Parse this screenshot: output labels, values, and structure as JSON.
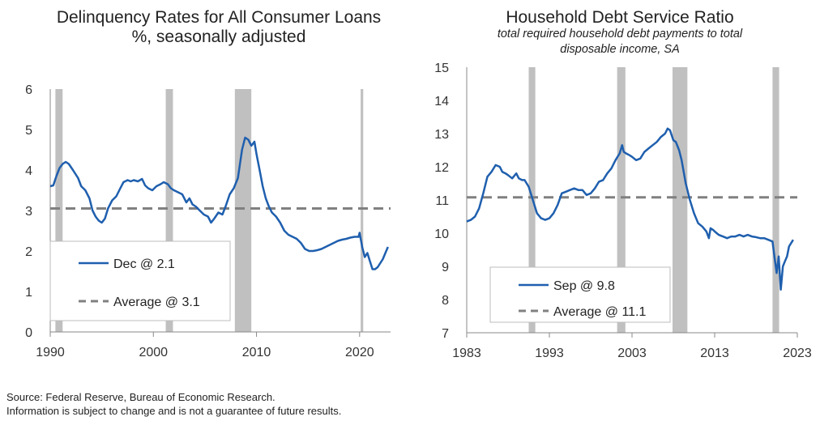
{
  "footer": {
    "source": "Source: Federal Reserve, Bureau of Economic Research.",
    "disclaimer": "Information is subject to change and is not a guarantee of future results."
  },
  "colors": {
    "series": "#1f5fae",
    "average": "#808080",
    "recession": "#c0c0c0",
    "axis": "#888888"
  },
  "chart_data": [
    {
      "type": "line",
      "title": "Delinquency Rates for All Consumer Loans",
      "subtitle": "%, seasonally adjusted",
      "xlim": [
        1990,
        2023
      ],
      "ylim": [
        0,
        6
      ],
      "xticks": [
        1990,
        2000,
        2010,
        2020
      ],
      "xtick_labels": [
        "1990",
        "2000",
        "2010",
        "2020"
      ],
      "yticks": [
        0,
        1,
        2,
        3,
        4,
        5,
        6
      ],
      "ytick_labels": [
        "0",
        "1",
        "2",
        "3",
        "4",
        "5",
        "6"
      ],
      "recessions": [
        [
          1990.5,
          1991.2
        ],
        [
          2001.2,
          2001.9
        ],
        [
          2007.9,
          2009.5
        ],
        [
          2020.1,
          2020.35
        ]
      ],
      "series": [
        {
          "name": "Dec @ 2.1",
          "x": [
            1990.0,
            1990.3,
            1990.6,
            1990.9,
            1991.2,
            1991.5,
            1991.8,
            1992.2,
            1992.7,
            1993.0,
            1993.4,
            1993.8,
            1994.1,
            1994.4,
            1994.7,
            1995.0,
            1995.3,
            1995.6,
            1996.0,
            1996.4,
            1996.8,
            1997.1,
            1997.5,
            1997.8,
            1998.1,
            1998.5,
            1998.9,
            1999.2,
            1999.5,
            1999.9,
            2000.3,
            2000.7,
            2001.0,
            2001.4,
            2001.7,
            2002.0,
            2002.4,
            2002.8,
            2003.2,
            2003.5,
            2003.8,
            2004.1,
            2004.5,
            2004.9,
            2005.3,
            2005.6,
            2005.9,
            2006.3,
            2006.7,
            2007.0,
            2007.4,
            2007.8,
            2008.2,
            2008.6,
            2008.9,
            2009.2,
            2009.5,
            2009.8,
            2010.0,
            2010.3,
            2010.6,
            2010.9,
            2011.2,
            2011.5,
            2011.9,
            2012.3,
            2012.7,
            2013.1,
            2013.5,
            2013.9,
            2014.3,
            2014.7,
            2015.1,
            2015.5,
            2015.9,
            2016.3,
            2016.7,
            2017.1,
            2017.5,
            2017.9,
            2018.3,
            2018.7,
            2019.1,
            2019.5,
            2019.9,
            2020.0,
            2020.25,
            2020.5,
            2020.75,
            2021.0,
            2021.25,
            2021.5,
            2021.75,
            2022.0,
            2022.25,
            2022.5,
            2022.75
          ],
          "y": [
            3.6,
            3.62,
            3.85,
            4.05,
            4.15,
            4.2,
            4.15,
            4.0,
            3.8,
            3.6,
            3.5,
            3.3,
            3.0,
            2.85,
            2.75,
            2.7,
            2.8,
            3.05,
            3.25,
            3.35,
            3.55,
            3.7,
            3.75,
            3.72,
            3.75,
            3.72,
            3.78,
            3.62,
            3.55,
            3.5,
            3.6,
            3.65,
            3.7,
            3.65,
            3.55,
            3.5,
            3.45,
            3.4,
            3.2,
            3.3,
            3.15,
            3.1,
            3.0,
            2.9,
            2.85,
            2.7,
            2.8,
            2.95,
            2.9,
            3.1,
            3.4,
            3.55,
            3.8,
            4.5,
            4.8,
            4.75,
            4.6,
            4.7,
            4.4,
            4.0,
            3.6,
            3.3,
            3.1,
            2.95,
            2.85,
            2.7,
            2.5,
            2.4,
            2.35,
            2.3,
            2.2,
            2.05,
            2.0,
            2.0,
            2.02,
            2.05,
            2.1,
            2.15,
            2.2,
            2.25,
            2.28,
            2.3,
            2.33,
            2.35,
            2.35,
            2.45,
            2.1,
            1.85,
            1.95,
            1.75,
            1.55,
            1.55,
            1.6,
            1.7,
            1.8,
            1.95,
            2.1
          ]
        },
        {
          "name": "Average @ 3.1",
          "y": 3.05,
          "style": "dashed"
        }
      ]
    },
    {
      "type": "line",
      "title": "Household Debt Service Ratio",
      "subtitle": "total required household debt payments to total disposable income, SA",
      "xlim": [
        1983,
        2023
      ],
      "ylim": [
        7,
        15
      ],
      "xticks": [
        1983,
        1993,
        2003,
        2013,
        2023
      ],
      "xtick_labels": [
        "1983",
        "1993",
        "2003",
        "2013",
        "2023"
      ],
      "yticks": [
        7,
        8,
        9,
        10,
        11,
        12,
        13,
        14,
        15
      ],
      "ytick_labels": [
        "7",
        "8",
        "9",
        "10",
        "11",
        "12",
        "13",
        "14",
        "15"
      ],
      "recessions": [
        [
          1990.5,
          1991.3
        ],
        [
          2001.2,
          2002.2
        ],
        [
          2007.9,
          2009.7
        ],
        [
          2020.0,
          2020.8
        ]
      ],
      "series": [
        {
          "name": "Sep @ 9.8",
          "x": [
            1983.0,
            1983.5,
            1984.0,
            1984.5,
            1985.0,
            1985.5,
            1986.0,
            1986.5,
            1987.0,
            1987.3,
            1987.7,
            1988.0,
            1988.5,
            1989.0,
            1989.3,
            1989.7,
            1990.0,
            1990.5,
            1991.0,
            1991.5,
            1992.0,
            1992.5,
            1993.0,
            1993.5,
            1994.0,
            1994.5,
            1995.0,
            1995.5,
            1996.0,
            1996.5,
            1997.0,
            1997.5,
            1998.0,
            1998.5,
            1999.0,
            1999.5,
            2000.0,
            2000.5,
            2001.0,
            2001.5,
            2001.8,
            2002.0,
            2002.3,
            2002.7,
            2003.0,
            2003.5,
            2004.0,
            2004.5,
            2005.0,
            2005.5,
            2006.0,
            2006.5,
            2007.0,
            2007.3,
            2007.6,
            2008.0,
            2008.3,
            2008.7,
            2009.0,
            2009.5,
            2010.0,
            2010.5,
            2011.0,
            2011.5,
            2012.0,
            2012.3,
            2012.5,
            2012.8,
            2013.0,
            2013.5,
            2014.0,
            2014.5,
            2015.0,
            2015.5,
            2016.0,
            2016.5,
            2017.0,
            2017.5,
            2018.0,
            2018.5,
            2019.0,
            2019.5,
            2020.0,
            2020.25,
            2020.5,
            2020.75,
            2021.0,
            2021.25,
            2021.5,
            2021.75,
            2022.0,
            2022.5
          ],
          "y": [
            10.35,
            10.4,
            10.5,
            10.75,
            11.2,
            11.7,
            11.85,
            12.05,
            12.0,
            11.85,
            11.8,
            11.75,
            11.65,
            11.8,
            11.65,
            11.6,
            11.6,
            11.4,
            11.0,
            10.6,
            10.45,
            10.4,
            10.45,
            10.6,
            10.85,
            11.2,
            11.25,
            11.3,
            11.35,
            11.3,
            11.3,
            11.15,
            11.2,
            11.35,
            11.55,
            11.6,
            11.8,
            11.95,
            12.2,
            12.4,
            12.65,
            12.45,
            12.4,
            12.35,
            12.3,
            12.2,
            12.25,
            12.45,
            12.55,
            12.65,
            12.75,
            12.9,
            13.0,
            13.15,
            13.1,
            12.8,
            12.75,
            12.5,
            12.2,
            11.5,
            11.0,
            10.6,
            10.3,
            10.2,
            10.05,
            9.85,
            10.15,
            10.1,
            10.05,
            9.95,
            9.9,
            9.85,
            9.9,
            9.9,
            9.95,
            9.9,
            9.95,
            9.9,
            9.88,
            9.85,
            9.85,
            9.8,
            9.75,
            9.25,
            8.8,
            9.3,
            8.3,
            9.0,
            9.15,
            9.3,
            9.6,
            9.8
          ]
        },
        {
          "name": "Average @ 11.1",
          "y": 11.08,
          "style": "dashed"
        }
      ]
    }
  ]
}
